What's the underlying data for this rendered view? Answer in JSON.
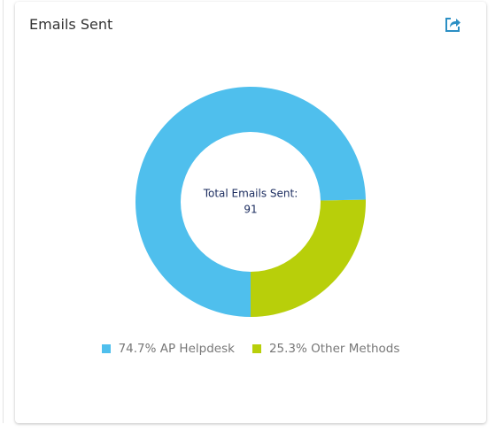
{
  "chart_data": {
    "type": "donut",
    "title": "Emails Sent",
    "center_label": "Total Emails Sent:",
    "total": 91,
    "categories": [
      "AP Helpdesk",
      "Other Methods"
    ],
    "values": [
      74.7,
      25.3
    ],
    "value_labels": [
      "74.7%",
      "25.3%"
    ],
    "colors": [
      "#4fbfed",
      "#b8cf0a"
    ]
  }
}
